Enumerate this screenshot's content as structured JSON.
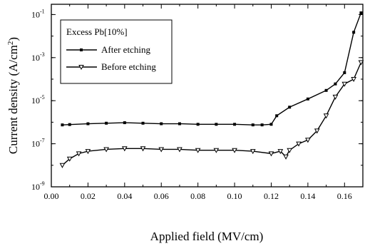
{
  "chart_data": {
    "type": "line",
    "title": "",
    "xlabel": "Applied field (MV/cm)",
    "ylabel": "Current density (A/cm",
    "ylabel_sup": "2",
    "ylabel_close": ")",
    "xlim": [
      0.0,
      0.17
    ],
    "ylim": [
      1e-09,
      0.3
    ],
    "yscale": "log",
    "grid": false,
    "legend_title": "Excess Pb[10%]",
    "legend_position": "top-left",
    "x_ticks": [
      {
        "value": 0.0,
        "label": "0.00"
      },
      {
        "value": 0.02,
        "label": "0.02"
      },
      {
        "value": 0.04,
        "label": "0.04"
      },
      {
        "value": 0.06,
        "label": "0.06"
      },
      {
        "value": 0.08,
        "label": "0.08"
      },
      {
        "value": 0.1,
        "label": "0.10"
      },
      {
        "value": 0.12,
        "label": "0.12"
      },
      {
        "value": 0.14,
        "label": "0.14"
      },
      {
        "value": 0.16,
        "label": "0.16"
      }
    ],
    "y_ticks": [
      {
        "exp": -9,
        "base": "10",
        "sup": "-9"
      },
      {
        "exp": -7,
        "base": "10",
        "sup": "-7"
      },
      {
        "exp": -5,
        "base": "10",
        "sup": "-5"
      },
      {
        "exp": -3,
        "base": "10",
        "sup": "-3"
      },
      {
        "exp": -1,
        "base": "10",
        "sup": "-1"
      }
    ],
    "series": [
      {
        "name": "After etching",
        "marker": "square",
        "color": "#000000",
        "x": [
          0.006,
          0.01,
          0.02,
          0.03,
          0.04,
          0.05,
          0.06,
          0.07,
          0.08,
          0.09,
          0.1,
          0.11,
          0.115,
          0.12,
          0.123,
          0.13,
          0.14,
          0.15,
          0.155,
          0.16,
          0.165,
          0.169
        ],
        "y": [
          7.5e-07,
          7.8e-07,
          8.5e-07,
          9e-07,
          9.5e-07,
          9e-07,
          8.5e-07,
          8.5e-07,
          8e-07,
          8e-07,
          8e-07,
          7.5e-07,
          7.5e-07,
          8e-07,
          2e-06,
          5e-06,
          1.2e-05,
          3e-05,
          6e-05,
          0.0002,
          0.015,
          0.12
        ]
      },
      {
        "name": "Before etching",
        "marker": "triangle-down",
        "color": "#000000",
        "x": [
          0.006,
          0.01,
          0.015,
          0.02,
          0.03,
          0.04,
          0.05,
          0.06,
          0.07,
          0.08,
          0.09,
          0.1,
          0.11,
          0.12,
          0.125,
          0.128,
          0.13,
          0.135,
          0.14,
          0.145,
          0.15,
          0.155,
          0.16,
          0.165,
          0.169
        ],
        "y": [
          1e-08,
          2e-08,
          3.5e-08,
          4.5e-08,
          5.5e-08,
          6e-08,
          6e-08,
          5.5e-08,
          5.5e-08,
          5e-08,
          5e-08,
          5e-08,
          4.5e-08,
          3.5e-08,
          4.5e-08,
          2.5e-08,
          5e-08,
          1e-07,
          1.5e-07,
          4e-07,
          2e-06,
          1.5e-05,
          6e-05,
          0.0001,
          0.0006
        ]
      }
    ]
  }
}
